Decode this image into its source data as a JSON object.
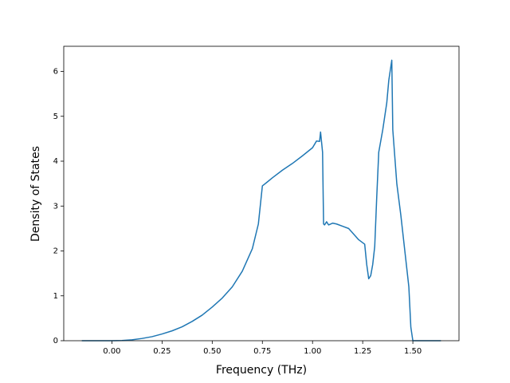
{
  "chart_data": {
    "type": "line",
    "xlabel": "Frequency (THz)",
    "ylabel": "Density of States",
    "xlim": [
      -0.24,
      1.73
    ],
    "ylim": [
      0,
      6.56
    ],
    "xticks": [
      {
        "value": 0,
        "label": "0.00"
      },
      0.25,
      {
        "value": 0.5,
        "label": "0.50"
      },
      0.75,
      {
        "value": 1,
        "label": "1.00"
      },
      1.25,
      {
        "value": 1.5,
        "label": "1.50"
      }
    ],
    "yticks": [
      0,
      1,
      2,
      3,
      4,
      5,
      6
    ],
    "series": [
      {
        "color": "#1f77b4",
        "x": [
          -0.15,
          0.0,
          0.05,
          0.1,
          0.15,
          0.2,
          0.25,
          0.3,
          0.35,
          0.4,
          0.45,
          0.5,
          0.55,
          0.6,
          0.65,
          0.7,
          0.73,
          0.75,
          0.77,
          0.8,
          0.85,
          0.9,
          0.95,
          1.0,
          1.02,
          1.035,
          1.04,
          1.05,
          1.055,
          1.06,
          1.07,
          1.08,
          1.1,
          1.12,
          1.15,
          1.18,
          1.2,
          1.23,
          1.26,
          1.27,
          1.28,
          1.29,
          1.3,
          1.31,
          1.32,
          1.33,
          1.35,
          1.37,
          1.38,
          1.39,
          1.395,
          1.4,
          1.42,
          1.44,
          1.46,
          1.48,
          1.49,
          1.5,
          1.64
        ],
        "values": [
          0,
          0,
          0.005,
          0.02,
          0.05,
          0.09,
          0.15,
          0.22,
          0.31,
          0.43,
          0.57,
          0.75,
          0.95,
          1.2,
          1.55,
          2.05,
          2.6,
          3.45,
          3.52,
          3.63,
          3.8,
          3.95,
          4.12,
          4.3,
          4.45,
          4.44,
          4.65,
          4.2,
          2.6,
          2.58,
          2.65,
          2.58,
          2.62,
          2.6,
          2.55,
          2.5,
          2.4,
          2.25,
          2.15,
          1.7,
          1.38,
          1.45,
          1.7,
          2.1,
          3.2,
          4.2,
          4.7,
          5.3,
          5.8,
          6.1,
          6.25,
          4.7,
          3.5,
          2.8,
          2.0,
          1.2,
          0.3,
          0,
          0
        ]
      }
    ]
  }
}
